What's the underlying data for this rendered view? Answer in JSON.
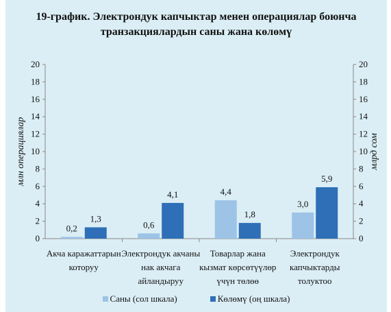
{
  "chart_data": {
    "type": "bar",
    "title_line1": "19-график. Электрондук капчыктар менен операциялар боюнча",
    "title_line2": "транзакциялардын саны жана көлөмү",
    "ylabel_left": "млн операциялар",
    "ylabel_right": "млрд сом",
    "ylim": [
      0,
      20
    ],
    "yticks": [
      "0",
      "2",
      "4",
      "6",
      "8",
      "10",
      "12",
      "14",
      "16",
      "18",
      "20"
    ],
    "categories": [
      [
        "Акча каражаттарын",
        "которуу"
      ],
      [
        "Электрондук акчаны",
        "нак акчага",
        "айландыруу"
      ],
      [
        "Товарлар жана",
        "кызмат көрсөтүүлөр",
        "үчүн төлөө"
      ],
      [
        "Электрондук",
        "капчыктарды",
        "толуктоо"
      ]
    ],
    "series": [
      {
        "name": "Саны (сол шкала)",
        "values": [
          0.2,
          0.6,
          4.4,
          3.0
        ],
        "labels": [
          "0,2",
          "0,6",
          "4,4",
          "3,0"
        ],
        "color": "#9dc3e6"
      },
      {
        "name": "Көлөмү (оң шкала)",
        "values": [
          1.3,
          4.1,
          1.8,
          5.9
        ],
        "labels": [
          "1,3",
          "4,1",
          "1,8",
          "5,9"
        ],
        "color": "#2e6fb7"
      }
    ],
    "legend_position": "bottom",
    "grid": false
  }
}
